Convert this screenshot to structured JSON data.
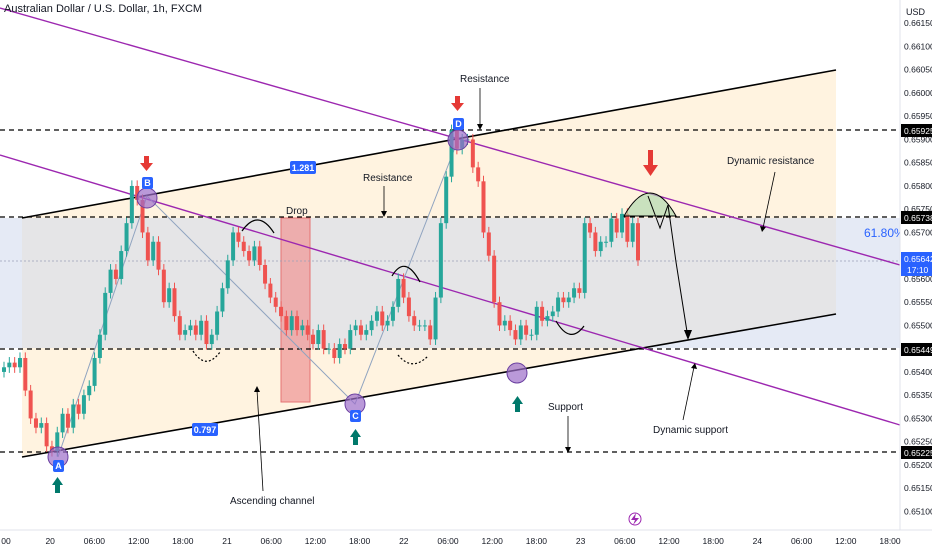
{
  "header": {
    "title": "Australian Dollar / U.S. Dollar, 1h, FXCM"
  },
  "axis": {
    "currency": "USD",
    "y_ticks": [
      "0.66150",
      "0.66100",
      "0.66050",
      "0.66000",
      "0.65950",
      "0.65900",
      "0.65850",
      "0.65800",
      "0.65750",
      "0.65700",
      "0.65600",
      "0.65550",
      "0.65500",
      "0.65400",
      "0.65350",
      "0.65300",
      "0.65250",
      "0.65200",
      "0.65150",
      "0.65100"
    ],
    "x_ticks": [
      "00",
      "20",
      "06:00",
      "12:00",
      "18:00",
      "21",
      "06:00",
      "12:00",
      "18:00",
      "22",
      "06:00",
      "12:00",
      "18:00",
      "23",
      "06:00",
      "12:00",
      "18:00",
      "24",
      "06:00",
      "12:00",
      "18:00"
    ]
  },
  "price_labels": {
    "r1": "0.65925",
    "r2": "0.65738",
    "cur": "0.65642",
    "cur_time": "17:10",
    "s1": "0.65449",
    "s2": "0.65225"
  },
  "annotations": {
    "resistance_top": "Resistance",
    "resistance_mid": "Resistance",
    "drop": "Drop",
    "dynamic_resistance": "Dynamic resistance",
    "support": "Support",
    "dynamic_support": "Dynamic support",
    "ascending_channel": "Ascending channel",
    "fib": "61.80%",
    "ratio_1": "1.281",
    "ratio_2": "0.797",
    "point_a": "A",
    "point_b": "B",
    "point_c": "C",
    "point_d": "D"
  },
  "colors": {
    "up": "#26a69a",
    "down": "#ef5350",
    "channel_line": "#000000",
    "trend_line": "#9c27b0",
    "marker_circle": "#9c6ec9",
    "zone_fill": "#fff3e0",
    "band_fill": "#cfd8ec",
    "drop_box": "#ef9a9a",
    "point_label_bg": "#2962ff"
  },
  "chart_data": {
    "type": "candlestick",
    "title": "Australian Dollar / U.S. Dollar, 1h, FXCM",
    "ylim": [
      0.6506,
      0.662
    ],
    "levels": [
      0.65925,
      0.65738,
      0.65449,
      0.65225
    ],
    "current_price": 0.65642,
    "series": [
      {
        "values": [
          0.654,
          0.6541,
          0.6542,
          0.6541,
          0.6543,
          0.6536,
          0.653,
          0.6528,
          0.6529,
          0.6524,
          0.6523,
          0.6527,
          0.6531,
          0.6528,
          0.6533,
          0.6531,
          0.6535,
          0.6537,
          0.6543,
          0.6548,
          0.6557,
          0.6562,
          0.656,
          0.6566,
          0.6572,
          0.658,
          0.6577,
          0.657,
          0.6564,
          0.6568,
          0.6562,
          0.6555,
          0.6558,
          0.6552,
          0.6548,
          0.6549,
          0.655,
          0.6548,
          0.6551,
          0.6546,
          0.6548,
          0.6553,
          0.6558,
          0.6564,
          0.657,
          0.6568,
          0.6566,
          0.6564,
          0.6567,
          0.6563,
          0.6559,
          0.6556,
          0.6554,
          0.6552,
          0.6549,
          0.6552,
          0.6549,
          0.655,
          0.6548,
          0.6546,
          0.6549,
          0.6545,
          0.6545,
          0.6543,
          0.6546,
          0.6545,
          0.6549,
          0.655,
          0.6548,
          0.6549,
          0.6551,
          0.6553,
          0.655,
          0.6551,
          0.6554,
          0.656,
          0.6556,
          0.6552,
          0.655,
          0.655,
          0.655,
          0.6547,
          0.6556,
          0.6572,
          0.6582,
          0.6592,
          0.6588,
          0.659,
          0.659,
          0.6584,
          0.6581,
          0.657,
          0.6565,
          0.6555,
          0.655,
          0.6551,
          0.6549,
          0.6547,
          0.655,
          0.6548,
          0.6548,
          0.6554,
          0.6551,
          0.6552,
          0.6553,
          0.6556,
          0.6555,
          0.6556,
          0.6558,
          0.6557,
          0.6572,
          0.657,
          0.6566,
          0.6568,
          0.6568,
          0.6573,
          0.657,
          0.6574,
          0.6568,
          0.6572
        ]
      },
      {
        "values": [
          0.6541,
          0.6542,
          0.6541,
          0.6543,
          0.6536,
          0.653,
          0.6528,
          0.6529,
          0.6524,
          0.6523,
          0.6527,
          0.6531,
          0.6528,
          0.6533,
          0.6531,
          0.6535,
          0.6537,
          0.6543,
          0.6548,
          0.6557,
          0.6562,
          0.656,
          0.6566,
          0.6572,
          0.658,
          0.6577,
          0.657,
          0.6564,
          0.6568,
          0.6562,
          0.6555,
          0.6558,
          0.6552,
          0.6548,
          0.6549,
          0.655,
          0.6548,
          0.6551,
          0.6546,
          0.6548,
          0.6553,
          0.6558,
          0.6564,
          0.657,
          0.6568,
          0.6566,
          0.6564,
          0.6567,
          0.6563,
          0.6559,
          0.6556,
          0.6554,
          0.6552,
          0.6549,
          0.6552,
          0.6549,
          0.655,
          0.6548,
          0.6546,
          0.6549,
          0.6545,
          0.6545,
          0.6543,
          0.6546,
          0.6545,
          0.6549,
          0.655,
          0.6548,
          0.6549,
          0.6551,
          0.6553,
          0.655,
          0.6551,
          0.6554,
          0.656,
          0.6556,
          0.6552,
          0.655,
          0.655,
          0.655,
          0.6547,
          0.6556,
          0.6572,
          0.6582,
          0.6592,
          0.6588,
          0.659,
          0.659,
          0.6584,
          0.6581,
          0.657,
          0.6565,
          0.6555,
          0.655,
          0.6551,
          0.6549,
          0.6547,
          0.655,
          0.6548,
          0.6548,
          0.6554,
          0.6551,
          0.6552,
          0.6553,
          0.6556,
          0.6555,
          0.6556,
          0.6558,
          0.6557,
          0.6572,
          0.657,
          0.6566,
          0.6568,
          0.6568,
          0.6573,
          0.657,
          0.6574,
          0.6568,
          0.6572,
          0.6564
        ]
      }
    ]
  }
}
